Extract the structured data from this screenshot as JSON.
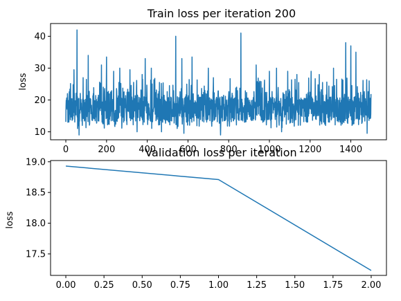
{
  "chart_data": [
    {
      "type": "line",
      "title": "Train loss per iteration 200",
      "xlabel": "",
      "ylabel": "loss",
      "xlim": [
        -75,
        1575
      ],
      "ylim": [
        7.5,
        44
      ],
      "xticks": [
        0,
        200,
        400,
        600,
        800,
        1000,
        1200,
        1400
      ],
      "yticks": [
        10,
        20,
        30,
        40
      ],
      "grid": false,
      "series_color": "#1f77b4",
      "n_points": 1500,
      "baseline_mean": 17,
      "spikes": [
        {
          "x": 8,
          "y": 22
        },
        {
          "x": 40,
          "y": 29.5
        },
        {
          "x": 55,
          "y": 42
        },
        {
          "x": 85,
          "y": 27
        },
        {
          "x": 110,
          "y": 34
        },
        {
          "x": 135,
          "y": 22
        },
        {
          "x": 175,
          "y": 31
        },
        {
          "x": 200,
          "y": 33.5
        },
        {
          "x": 235,
          "y": 29
        },
        {
          "x": 265,
          "y": 30
        },
        {
          "x": 315,
          "y": 29.5
        },
        {
          "x": 375,
          "y": 28
        },
        {
          "x": 390,
          "y": 33
        },
        {
          "x": 420,
          "y": 30
        },
        {
          "x": 470,
          "y": 29
        },
        {
          "x": 540,
          "y": 40
        },
        {
          "x": 570,
          "y": 33
        },
        {
          "x": 620,
          "y": 33.5
        },
        {
          "x": 700,
          "y": 30
        },
        {
          "x": 725,
          "y": 27
        },
        {
          "x": 760,
          "y": 31
        },
        {
          "x": 860,
          "y": 41
        },
        {
          "x": 935,
          "y": 31
        },
        {
          "x": 1000,
          "y": 29
        },
        {
          "x": 1035,
          "y": 30
        },
        {
          "x": 1090,
          "y": 29
        },
        {
          "x": 1135,
          "y": 28
        },
        {
          "x": 1205,
          "y": 29
        },
        {
          "x": 1245,
          "y": 28
        },
        {
          "x": 1315,
          "y": 30
        },
        {
          "x": 1375,
          "y": 38
        },
        {
          "x": 1400,
          "y": 37
        },
        {
          "x": 1425,
          "y": 35
        },
        {
          "x": 1490,
          "y": 26
        }
      ],
      "dips": [
        {
          "x": 65,
          "y": 9
        },
        {
          "x": 350,
          "y": 10
        },
        {
          "x": 470,
          "y": 10
        },
        {
          "x": 580,
          "y": 9.5
        },
        {
          "x": 760,
          "y": 9
        },
        {
          "x": 1060,
          "y": 10
        },
        {
          "x": 1480,
          "y": 9.5
        }
      ]
    },
    {
      "type": "line",
      "title": "Validation loss per iteration",
      "xlabel": "",
      "ylabel": "loss",
      "xlim": [
        -0.1,
        2.1
      ],
      "ylim": [
        17.15,
        19.02
      ],
      "xticks": [
        0.0,
        0.25,
        0.5,
        0.75,
        1.0,
        1.25,
        1.5,
        1.75,
        2.0
      ],
      "xtick_labels": [
        "0.00",
        "0.25",
        "0.50",
        "0.75",
        "1.00",
        "1.25",
        "1.50",
        "1.75",
        "2.00"
      ],
      "yticks": [
        17.5,
        18.0,
        18.5,
        19.0
      ],
      "ytick_labels": [
        "17.5",
        "18.0",
        "18.5",
        "19.0"
      ],
      "grid": false,
      "series_color": "#1f77b4",
      "x": [
        0,
        1,
        2
      ],
      "y": [
        18.93,
        18.71,
        17.23
      ]
    }
  ]
}
